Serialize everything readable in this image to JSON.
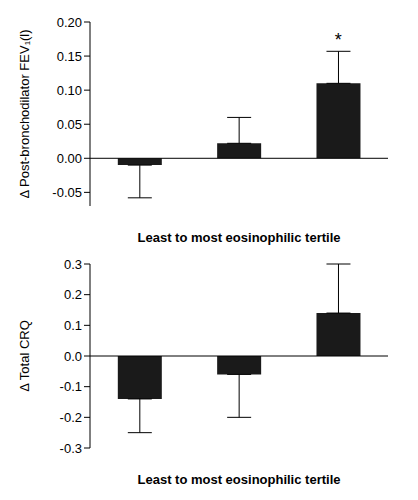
{
  "chart_data": [
    {
      "type": "bar",
      "y_label": "Δ Post-bronchodilator FEV₁(l)",
      "x_label": "Least to most eosinophilic tertile",
      "categories": [
        null,
        null,
        null
      ],
      "values": [
        -0.01,
        0.022,
        0.11
      ],
      "errors": [
        0.048,
        0.038,
        0.047
      ],
      "color": "#1a1a1a",
      "ylim": [
        -0.07,
        0.2
      ],
      "yticks": [
        {
          "value": -0.05,
          "label": "-0.05"
        },
        {
          "value": 0,
          "label": "0.00"
        },
        {
          "value": 0.05,
          "label": "0.05"
        },
        {
          "value": 0.1,
          "label": "0.10"
        },
        {
          "value": 0.15,
          "label": "0.15"
        },
        {
          "value": 0.2,
          "label": "0.20"
        }
      ],
      "annotations": [
        {
          "text": "*",
          "category_index": 2
        }
      ]
    },
    {
      "type": "bar",
      "y_label": "Δ Total CRQ",
      "x_label": "Least to most eosinophilic tertile",
      "categories": [
        null,
        null,
        null
      ],
      "values": [
        -0.14,
        -0.06,
        0.14
      ],
      "errors": [
        0.11,
        0.14,
        0.16
      ],
      "color": "#1a1a1a",
      "ylim": [
        -0.3,
        0.3
      ],
      "yticks": [
        -0.3,
        -0.2,
        -0.1,
        {
          "value": 0,
          "label": "0.0"
        },
        0.1,
        0.2,
        0.3
      ]
    }
  ]
}
